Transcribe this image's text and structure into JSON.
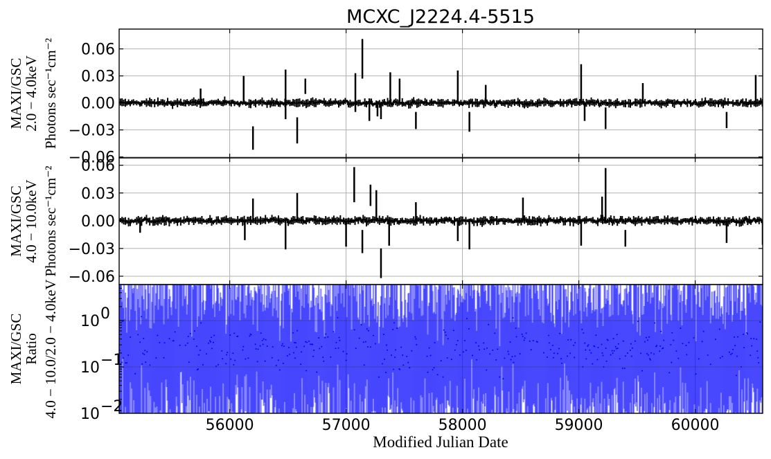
{
  "chart_data": {
    "type": "line",
    "title": "MCXC_J2224.4-5515",
    "xlabel": "Modified Julian Date",
    "xlim": [
      55050,
      60580
    ],
    "x_ticks": [
      "56000",
      "57000",
      "58000",
      "59000",
      "60000"
    ],
    "grid": true,
    "panels": [
      {
        "name": "soft",
        "ylabel_lines": [
          "MAXI/GSC",
          "2.0 − 4.0keV",
          "Photons sec⁻¹cm⁻²"
        ],
        "ylim": [
          -0.061,
          0.082
        ],
        "y_ticks": [
          "0.06",
          "0.03",
          "0.00",
          "−0.03",
          "−0.06"
        ],
        "y_tick_values": [
          0.06,
          0.03,
          0.0,
          -0.03,
          -0.06
        ],
        "color": "#000000",
        "spikes": [
          {
            "x": 55750,
            "lo": 0.0,
            "hi": 0.016
          },
          {
            "x": 56120,
            "lo": 0.0,
            "hi": 0.03
          },
          {
            "x": 56200,
            "lo": -0.052,
            "hi": -0.026
          },
          {
            "x": 56480,
            "lo": -0.018,
            "hi": 0.037
          },
          {
            "x": 56580,
            "lo": -0.045,
            "hi": -0.016
          },
          {
            "x": 56650,
            "lo": 0.01,
            "hi": 0.027
          },
          {
            "x": 57080,
            "lo": -0.01,
            "hi": 0.033
          },
          {
            "x": 57140,
            "lo": 0.027,
            "hi": 0.071
          },
          {
            "x": 57200,
            "lo": -0.02,
            "hi": 0.005
          },
          {
            "x": 57270,
            "lo": -0.015,
            "hi": 0.0
          },
          {
            "x": 57300,
            "lo": -0.018,
            "hi": 0.0
          },
          {
            "x": 57380,
            "lo": 0.0,
            "hi": 0.034
          },
          {
            "x": 57460,
            "lo": 0.0,
            "hi": 0.027
          },
          {
            "x": 57600,
            "lo": -0.029,
            "hi": -0.01
          },
          {
            "x": 57960,
            "lo": 0.0,
            "hi": 0.036
          },
          {
            "x": 58060,
            "lo": -0.032,
            "hi": -0.01
          },
          {
            "x": 58200,
            "lo": 0.0,
            "hi": 0.02
          },
          {
            "x": 59020,
            "lo": 0.0,
            "hi": 0.043
          },
          {
            "x": 59050,
            "lo": -0.02,
            "hi": 0.0
          },
          {
            "x": 59230,
            "lo": -0.029,
            "hi": -0.005
          },
          {
            "x": 59550,
            "lo": 0.0,
            "hi": 0.022
          },
          {
            "x": 60270,
            "lo": -0.028,
            "hi": -0.01
          },
          {
            "x": 60520,
            "lo": 0.0,
            "hi": 0.031
          }
        ]
      },
      {
        "name": "hard",
        "ylabel_lines": [
          "MAXI/GSC",
          "4.0 − 10.0keV",
          "Photons sec⁻¹cm⁻²"
        ],
        "ylim": [
          -0.069,
          0.068
        ],
        "y_ticks": [
          "0.06",
          "0.03",
          "0.00",
          "−0.03",
          "−0.06"
        ],
        "y_tick_values": [
          0.06,
          0.03,
          0.0,
          -0.03,
          -0.06
        ],
        "color": "#000000",
        "spikes": [
          {
            "x": 55230,
            "lo": -0.013,
            "hi": 0.0
          },
          {
            "x": 56130,
            "lo": -0.021,
            "hi": 0.0
          },
          {
            "x": 56200,
            "lo": 0.0,
            "hi": 0.024
          },
          {
            "x": 56480,
            "lo": -0.031,
            "hi": 0.0
          },
          {
            "x": 56580,
            "lo": 0.0,
            "hi": 0.03
          },
          {
            "x": 57000,
            "lo": -0.028,
            "hi": 0.0
          },
          {
            "x": 57070,
            "lo": 0.02,
            "hi": 0.058
          },
          {
            "x": 57140,
            "lo": -0.035,
            "hi": -0.01
          },
          {
            "x": 57210,
            "lo": 0.016,
            "hi": 0.039
          },
          {
            "x": 57260,
            "lo": 0.0,
            "hi": 0.033
          },
          {
            "x": 57300,
            "lo": -0.062,
            "hi": -0.03
          },
          {
            "x": 57370,
            "lo": -0.027,
            "hi": 0.0
          },
          {
            "x": 57600,
            "lo": 0.0,
            "hi": 0.02
          },
          {
            "x": 57960,
            "lo": -0.022,
            "hi": 0.0
          },
          {
            "x": 58060,
            "lo": -0.031,
            "hi": 0.0
          },
          {
            "x": 58520,
            "lo": 0.0,
            "hi": 0.025
          },
          {
            "x": 59020,
            "lo": -0.027,
            "hi": 0.0
          },
          {
            "x": 59200,
            "lo": 0.0,
            "hi": 0.026
          },
          {
            "x": 59230,
            "lo": 0.0,
            "hi": 0.057
          },
          {
            "x": 59400,
            "lo": -0.028,
            "hi": -0.01
          },
          {
            "x": 60270,
            "lo": -0.024,
            "hi": 0.0
          },
          {
            "x": 60580,
            "lo": -0.026,
            "hi": 0.0
          }
        ]
      },
      {
        "name": "ratio",
        "ylabel_lines": [
          "MAXI/GSC",
          "Ratio",
          "4.0 − 10.0/2.0 − 4.0keV"
        ],
        "yscale": "log",
        "ylim": [
          0.01,
          6.0
        ],
        "y_tick_values": [
          1.0,
          0.1,
          0.01
        ],
        "y_tick_exponents": [
          "0",
          "−1",
          "−2"
        ],
        "y_tick_base": "10",
        "color": "#0000ff"
      }
    ]
  }
}
